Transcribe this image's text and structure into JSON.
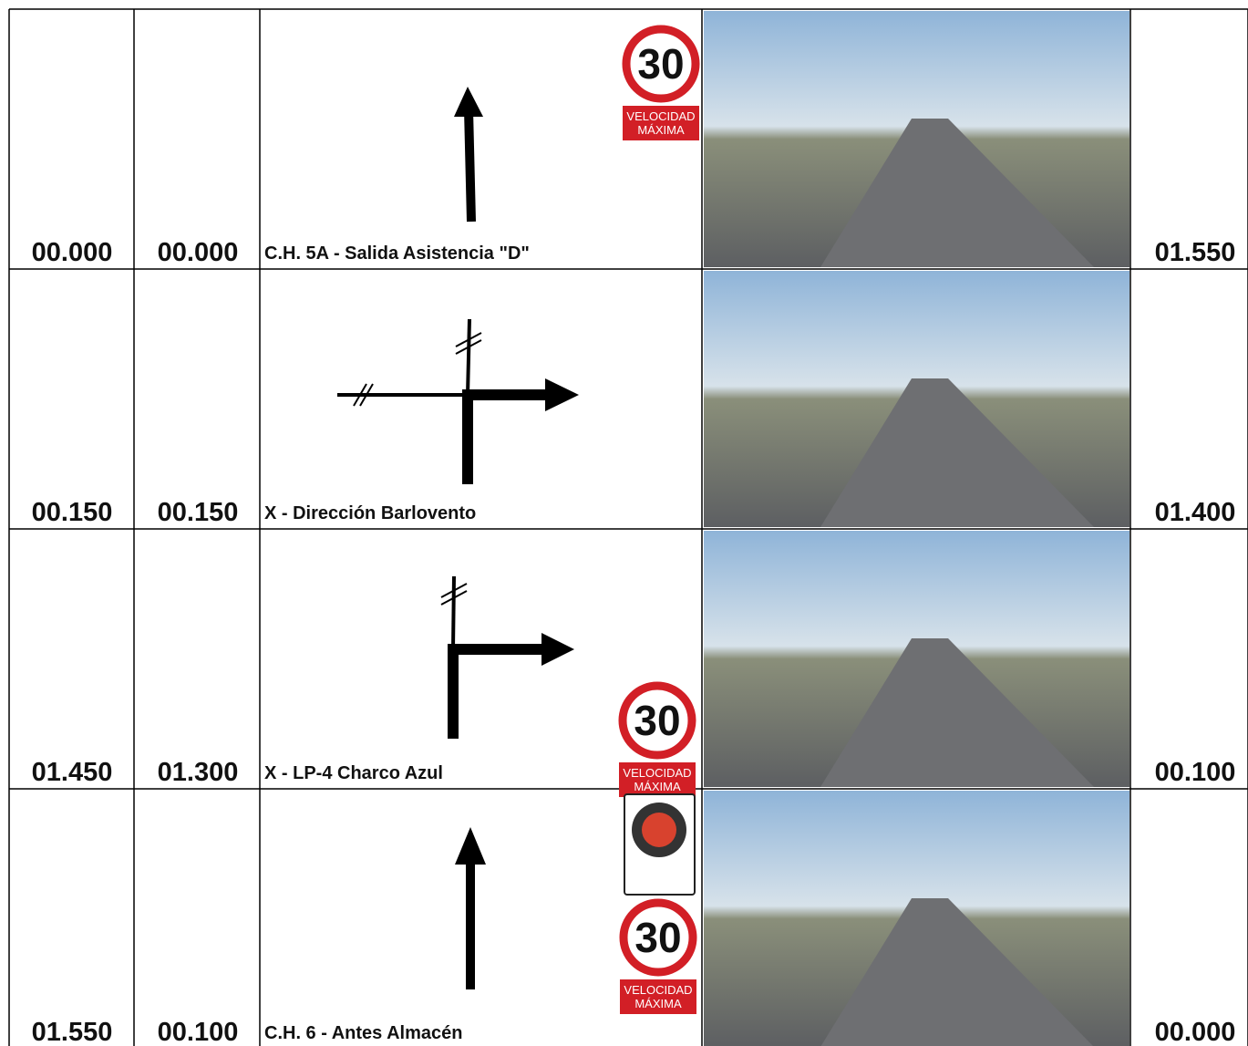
{
  "rows": [
    {
      "total": "00.000",
      "partial": "00.000",
      "description": "C.H. 5A - Salida Asistencia \"D\"",
      "remaining": "01.550",
      "signs": [
        {
          "number": "30",
          "caption": [
            "VELOCIDAD",
            "MÁXIMA"
          ]
        }
      ]
    },
    {
      "total": "00.150",
      "partial": "00.150",
      "description": "X - Dirección Barlovento",
      "remaining": "01.400",
      "signs": []
    },
    {
      "total": "01.450",
      "partial": "01.300",
      "description": "X - LP-4 Charco Azul",
      "remaining": "00.100",
      "signs": [
        {
          "number": "30",
          "caption": [
            "VELOCIDAD",
            "MÁXIMA"
          ]
        }
      ]
    },
    {
      "total": "01.550",
      "partial": "00.100",
      "description": "C.H. 6 - Antes Almacén",
      "remaining": "00.000",
      "signs": [
        {
          "number": "30",
          "caption": [
            "VELOCIDAD",
            "MÁXIMA"
          ]
        }
      ]
    }
  ]
}
